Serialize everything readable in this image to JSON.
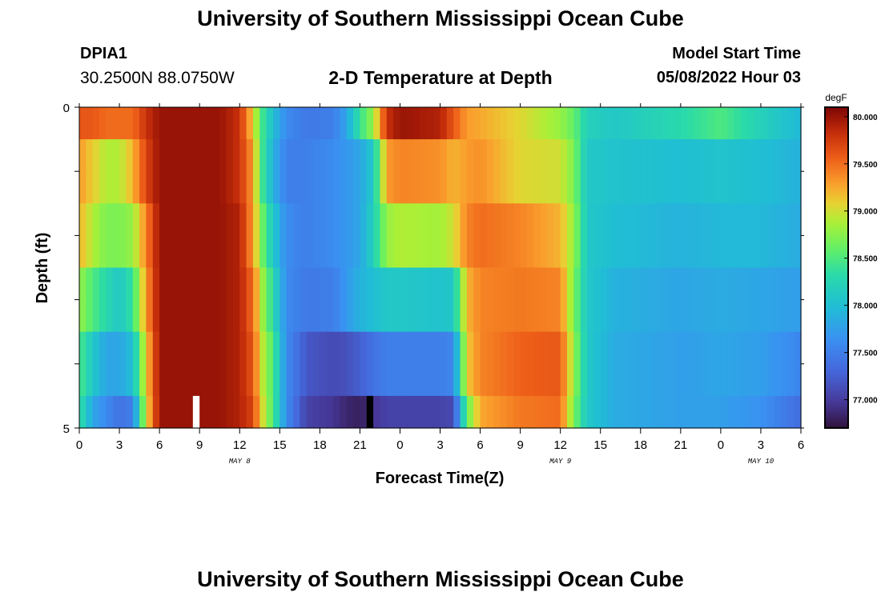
{
  "header": {
    "title": "University of Southern Mississippi Ocean Cube",
    "station": "DPIA1",
    "coords": "30.2500N  88.0750W",
    "subtitle": "2-D Temperature at Depth",
    "model_start_label": "Model Start Time",
    "model_start_value": "05/08/2022 Hour 03"
  },
  "footer": {
    "title": "University of Southern Mississippi Ocean Cube"
  },
  "chart_data": {
    "type": "heatmap",
    "xlabel": "Forecast Time(Z)",
    "ylabel": "Depth (ft)",
    "x_ticks": [
      "0",
      "3",
      "6",
      "9",
      "12",
      "15",
      "18",
      "21",
      "0",
      "3",
      "6",
      "9",
      "12",
      "15",
      "18",
      "21",
      "0",
      "3",
      "6"
    ],
    "date_labels": [
      {
        "text": "MAY 8",
        "at_tick": 4
      },
      {
        "text": "MAY 9",
        "at_tick": 12
      },
      {
        "text": "MAY 10",
        "at_tick": 17
      }
    ],
    "y_ticks": [
      "0",
      "5"
    ],
    "ylim": [
      0,
      5
    ],
    "x_range_hours": [
      0,
      54
    ],
    "colorbar": {
      "unit": "degF",
      "ticks": [
        "80.000",
        "79.500",
        "79.000",
        "78.500",
        "78.000",
        "77.500",
        "77.000"
      ],
      "tick_values": [
        80.0,
        79.5,
        79.0,
        78.5,
        78.0,
        77.5,
        77.0
      ],
      "range": [
        76.7,
        80.1
      ]
    },
    "depth_layers": [
      "0-0.5 ft",
      "0.5-1.5 ft",
      "1.5-2.5 ft",
      "2.5-3.5 ft",
      "3.5-4.5 ft",
      "4.5-5 ft"
    ],
    "layer_depth_bounds": [
      [
        0,
        0.5
      ],
      [
        0.5,
        1.5
      ],
      [
        1.5,
        2.5
      ],
      [
        2.5,
        3.5
      ],
      [
        3.5,
        4.5
      ],
      [
        4.5,
        5
      ]
    ],
    "keyframes": [
      {
        "hour": 0,
        "temps": [
          79.6,
          79.3,
          79.2,
          78.8,
          78.5,
          78.4
        ]
      },
      {
        "hour": 1,
        "temps": [
          79.6,
          79.1,
          78.9,
          78.5,
          78.1,
          77.8
        ]
      },
      {
        "hour": 2,
        "temps": [
          79.5,
          78.9,
          78.7,
          78.3,
          77.8,
          77.6
        ]
      },
      {
        "hour": 3,
        "temps": [
          79.5,
          78.9,
          78.7,
          78.1,
          77.8,
          77.4
        ]
      },
      {
        "hour": 4,
        "temps": [
          79.5,
          79.2,
          78.8,
          78.4,
          78.0,
          77.5
        ]
      },
      {
        "hour": 5,
        "temps": [
          79.8,
          79.7,
          79.4,
          79.3,
          79.1,
          79.0
        ]
      },
      {
        "hour": 6,
        "temps": [
          80.0,
          80.0,
          80.0,
          80.0,
          80.0,
          80.0
        ]
      },
      {
        "hour": 10.5,
        "temps": [
          80.0,
          80.0,
          80.0,
          80.0,
          80.0,
          80.0
        ]
      },
      {
        "hour": 12,
        "temps": [
          79.8,
          79.8,
          79.9,
          79.9,
          79.9,
          79.9
        ]
      },
      {
        "hour": 13,
        "temps": [
          79.1,
          79.3,
          79.3,
          79.5,
          79.6,
          79.7
        ]
      },
      {
        "hour": 13.6,
        "temps": [
          78.5,
          78.5,
          78.7,
          78.9,
          79.0,
          79.1
        ]
      },
      {
        "hour": 14.5,
        "temps": [
          78.0,
          77.9,
          78.1,
          78.3,
          78.5,
          78.5
        ]
      },
      {
        "hour": 15.5,
        "temps": [
          77.6,
          77.5,
          77.6,
          77.6,
          77.6,
          77.6
        ]
      },
      {
        "hour": 17,
        "temps": [
          77.45,
          77.5,
          77.5,
          77.45,
          77.2,
          77.05
        ]
      },
      {
        "hour": 19,
        "temps": [
          77.5,
          77.6,
          77.6,
          77.5,
          77.1,
          76.95
        ]
      },
      {
        "hour": 20,
        "temps": [
          77.8,
          77.7,
          77.7,
          77.7,
          77.15,
          76.85
        ]
      },
      {
        "hour": 21,
        "temps": [
          78.4,
          77.8,
          77.8,
          77.9,
          77.25,
          76.8
        ]
      },
      {
        "hour": 22,
        "temps": [
          78.8,
          78.1,
          78.2,
          78.0,
          77.4,
          76.95
        ]
      },
      {
        "hour": 23,
        "temps": [
          79.8,
          79.3,
          78.8,
          78.1,
          77.5,
          77.05
        ]
      },
      {
        "hour": 24,
        "temps": [
          80.0,
          79.4,
          78.9,
          78.1,
          77.5,
          77.05
        ]
      },
      {
        "hour": 27,
        "temps": [
          79.9,
          79.35,
          78.85,
          78.05,
          77.5,
          77.05
        ]
      },
      {
        "hour": 28,
        "temps": [
          79.6,
          79.2,
          79.0,
          78.1,
          77.55,
          77.1
        ]
      },
      {
        "hour": 29,
        "temps": [
          79.3,
          79.3,
          79.4,
          79.2,
          79.1,
          78.6
        ]
      },
      {
        "hour": 30,
        "temps": [
          79.25,
          79.35,
          79.5,
          79.4,
          79.4,
          79.25
        ]
      },
      {
        "hour": 33,
        "temps": [
          79.05,
          79.05,
          79.4,
          79.45,
          79.55,
          79.45
        ]
      },
      {
        "hour": 36,
        "temps": [
          78.8,
          79.0,
          79.2,
          79.4,
          79.6,
          79.5
        ]
      },
      {
        "hour": 37,
        "temps": [
          78.6,
          78.7,
          78.8,
          78.7,
          78.8,
          78.7
        ]
      },
      {
        "hour": 38,
        "temps": [
          78.2,
          78.1,
          78.1,
          78.1,
          78.1,
          78.1
        ]
      },
      {
        "hour": 40,
        "temps": [
          78.1,
          78.05,
          78.0,
          77.9,
          77.85,
          77.85
        ]
      },
      {
        "hour": 45,
        "temps": [
          78.3,
          78.0,
          77.9,
          77.8,
          77.75,
          77.75
        ]
      },
      {
        "hour": 48,
        "temps": [
          78.5,
          78.05,
          77.95,
          77.85,
          77.8,
          77.75
        ]
      },
      {
        "hour": 51,
        "temps": [
          78.2,
          78.0,
          77.95,
          77.8,
          77.75,
          77.65
        ]
      },
      {
        "hour": 54,
        "temps": [
          77.95,
          77.9,
          77.85,
          77.75,
          77.55,
          77.35
        ]
      }
    ],
    "gaps": [
      {
        "hour": 8.5,
        "layer": 5,
        "color": "#ffffff"
      },
      {
        "hour": 21.5,
        "layer": 5,
        "color": "#000000"
      }
    ]
  }
}
